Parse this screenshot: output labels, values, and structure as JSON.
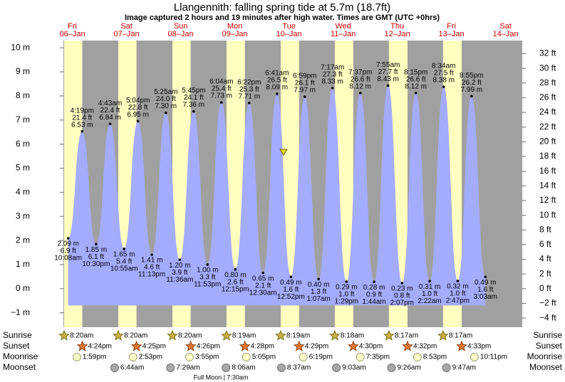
{
  "chart_data": {
    "type": "area",
    "title": "Llangennith: falling  spring tide at 5.7m (18.7ft)",
    "subtitle": "Image captured 2 hours and 19 minutes after high water. Times are GMT (UTC +0hrs)",
    "days": [
      {
        "name": "Fri",
        "date": "06–Jan"
      },
      {
        "name": "Sat",
        "date": "07–Jan"
      },
      {
        "name": "Sun",
        "date": "08–Jan"
      },
      {
        "name": "Mon",
        "date": "09–Jan"
      },
      {
        "name": "Tue",
        "date": "10–Jan"
      },
      {
        "name": "Wed",
        "date": "11–Jan"
      },
      {
        "name": "Thu",
        "date": "12–Jan"
      },
      {
        "name": "Fri",
        "date": "13–Jan"
      },
      {
        "name": "Sat",
        "date": "14–Jan"
      }
    ],
    "x": [
      "10:08am",
      "4:19pm",
      "10:30pm",
      "4:43am",
      "10:55am",
      "5:04pm",
      "11:13pm",
      "5:25am",
      "11:36am",
      "5:45pm",
      "11:53pm",
      "6:04am",
      "12:15pm",
      "6:22pm",
      "12:30am",
      "6:41am",
      "12:52pm",
      "6:59pm",
      "1:07am",
      "7:17am",
      "1:29pm",
      "7:37pm",
      "1:44am",
      "7:55am",
      "2:07pm",
      "8:15pm",
      "2:22am",
      "8:34am",
      "2:47pm",
      "8:55pm",
      "3:03am"
    ],
    "series": [
      {
        "color": "#a4acff",
        "values": [
          2.09,
          6.53,
          1.85,
          6.84,
          1.65,
          6.95,
          1.41,
          7.3,
          1.2,
          7.36,
          1.0,
          7.73,
          0.8,
          7.71,
          0.65,
          8.09,
          0.49,
          7.97,
          0.4,
          8.33,
          0.29,
          8.12,
          0.28,
          8.43,
          0.23,
          8.12,
          0.31,
          8.38,
          0.32,
          7.99,
          0.49
        ],
        "value_labels": [
          "2.09 m",
          "6.53 m",
          "1.85 m",
          "6.84 m",
          "1.65 m",
          "6.95 m",
          "1.41 m",
          "7.30 m",
          "1.20 m",
          "7.36 m",
          "1.00 m",
          "7.73 m",
          "0.80 m",
          "7.71 m",
          "0.65 m",
          "8.09 m",
          "0.49 m",
          "7.97 m",
          "0.40 m",
          "8.33 m",
          "0.29 m",
          "8.12 m",
          "0.28 m",
          "8.43 m",
          "0.23 m",
          "8.12 m",
          "0.31 m",
          "8.38 m",
          "0.32 m",
          "7.99 m",
          "0.49 m"
        ]
      },
      {
        "axis": "y2",
        "values": [
          6.9,
          21.4,
          6.1,
          22.4,
          5.4,
          22.8,
          4.6,
          24.0,
          3.9,
          24.1,
          3.3,
          25.4,
          2.6,
          25.3,
          2.1,
          26.5,
          1.6,
          26.1,
          1.3,
          27.3,
          1.0,
          26.6,
          0.9,
          27.7,
          0.8,
          26.6,
          1.0,
          27.5,
          1.0,
          26.2,
          1.6
        ],
        "value_labels": [
          "6.9 ft",
          "21.4 ft",
          "6.1 ft",
          "22.4 ft",
          "5.4 ft",
          "22.8 ft",
          "4.6 ft",
          "24.0 ft",
          "3.9 ft",
          "24.1 ft",
          "3.3 ft",
          "25.4 ft",
          "2.6 ft",
          "25.3 ft",
          "2.1 ft",
          "26.5 ft",
          "1.6 ft",
          "26.1 ft",
          "1.3 ft",
          "27.3 ft",
          "1.0 ft",
          "26.6 ft",
          "0.9 ft",
          "27.7 ft",
          "0.8 ft",
          "26.6 ft",
          "1.0 ft",
          "27.5 ft",
          "1.0 ft",
          "26.2 ft",
          "1.6 ft"
        ]
      }
    ],
    "ylim": [
      -1.6,
      10.3
    ],
    "yticks": [
      {
        "value": -1,
        "label": "−1 m"
      },
      {
        "value": 0,
        "label": "0 m"
      },
      {
        "value": 1,
        "label": "1 m"
      },
      {
        "value": 2,
        "label": "2 m"
      },
      {
        "value": 3,
        "label": "3 m"
      },
      {
        "value": 4,
        "label": "4 m"
      },
      {
        "value": 5,
        "label": "5 m"
      },
      {
        "value": 6,
        "label": "6 m"
      },
      {
        "value": 7,
        "label": "7 m"
      },
      {
        "value": 8,
        "label": "8 m"
      },
      {
        "value": 9,
        "label": "9 m"
      },
      {
        "value": 10,
        "label": "10 m"
      }
    ],
    "y2lim": [
      -5.25,
      33.79
    ],
    "y2ticks": [
      {
        "value": -4,
        "label": "−4 ft"
      },
      {
        "value": -2,
        "label": "−2 ft"
      },
      {
        "value": 0,
        "label": "0 ft"
      },
      {
        "value": 2,
        "label": "2 ft"
      },
      {
        "value": 4,
        "label": "4 ft"
      },
      {
        "value": 6,
        "label": "6 ft"
      },
      {
        "value": 8,
        "label": "8 ft"
      },
      {
        "value": 10,
        "label": "10 ft"
      },
      {
        "value": 12,
        "label": "12 ft"
      },
      {
        "value": 14,
        "label": "14 ft"
      },
      {
        "value": 16,
        "label": "16 ft"
      },
      {
        "value": 18,
        "label": "18 ft"
      },
      {
        "value": 20,
        "label": "20 ft"
      },
      {
        "value": 22,
        "label": "22 ft"
      },
      {
        "value": 24,
        "label": "24 ft"
      },
      {
        "value": 26,
        "label": "26 ft"
      },
      {
        "value": 28,
        "label": "28 ft"
      },
      {
        "value": 30,
        "label": "30 ft"
      },
      {
        "value": 32,
        "label": "32 ft"
      }
    ],
    "astro": [
      {
        "label": "Sunrise",
        "times": [
          "8:20am",
          "8:20am",
          "8:20am",
          "8:19am",
          "8:19am",
          "8:18am",
          "8:17am",
          "8:17am"
        ]
      },
      {
        "label": "Sunset",
        "times": [
          "4:24pm",
          "4:25pm",
          "4:26pm",
          "4:28pm",
          "4:29pm",
          "4:30pm",
          "4:32pm",
          "4:33pm"
        ]
      },
      {
        "label": "Moonrise",
        "times": [
          "1:59pm",
          "2:53pm",
          "3:55pm",
          "5:05pm",
          "6:19pm",
          "7:35pm",
          "8:53pm",
          "10:11pm"
        ]
      },
      {
        "label": "Moonset",
        "times": [
          null,
          "6:44am",
          "7:29am",
          "8:06am",
          "8:37am",
          "9:03am",
          "9:26am",
          "9:47am"
        ]
      }
    ],
    "full_moon": "Full Moon | 7:30am"
  }
}
